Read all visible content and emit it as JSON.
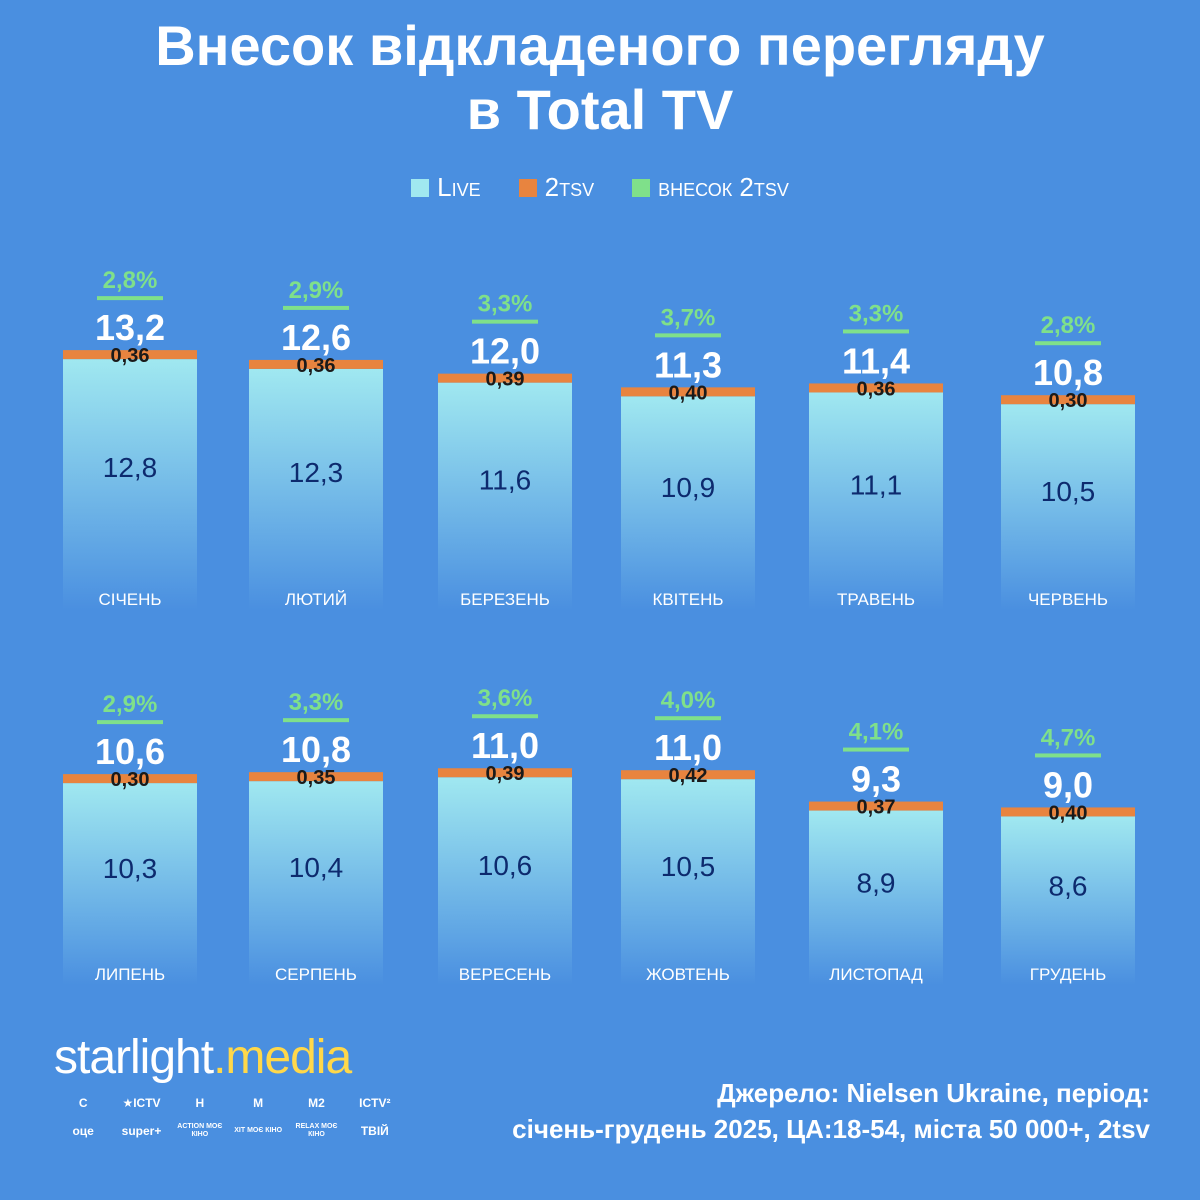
{
  "title": [
    "Внесок відкладеного перегляду",
    "в Total TV"
  ],
  "legend": {
    "live_label": "Live",
    "tsv_label": "2tsv",
    "share_label": "внесок 2tsv"
  },
  "colors": {
    "live_top": "#a0e8f0",
    "live_bottom": "#4a8fe0",
    "tsv": "#e8843f",
    "share": "#7fe08a",
    "total_text": "#ffffff",
    "live_text": "#0d2a6e",
    "tsv_text": "#1a1a1a"
  },
  "chart_data": {
    "type": "bar",
    "stacked": true,
    "categories": [
      "СІЧЕНЬ",
      "ЛЮТИЙ",
      "БЕРЕЗЕНЬ",
      "КВІТЕНЬ",
      "ТРАВЕНЬ",
      "ЧЕРВЕНЬ",
      "ЛИПЕНЬ",
      "СЕРПЕНЬ",
      "ВЕРЕСЕНЬ",
      "ЖОВТЕНЬ",
      "ЛИСТОПАД",
      "ГРУДЕНЬ"
    ],
    "series": [
      {
        "name": "Live",
        "values": [
          12.8,
          12.3,
          11.6,
          10.9,
          11.1,
          10.5,
          10.3,
          10.4,
          10.6,
          10.5,
          8.9,
          8.6
        ],
        "labels": [
          "12,8",
          "12,3",
          "11,6",
          "10,9",
          "11,1",
          "10,5",
          "10,3",
          "10,4",
          "10,6",
          "10,5",
          "8,9",
          "8,6"
        ]
      },
      {
        "name": "2tsv",
        "values": [
          0.36,
          0.36,
          0.39,
          0.4,
          0.36,
          0.3,
          0.3,
          0.35,
          0.39,
          0.42,
          0.37,
          0.4
        ],
        "labels": [
          "0,36",
          "0,36",
          "0,39",
          "0,40",
          "0,36",
          "0,30",
          "0,30",
          "0,35",
          "0,39",
          "0,42",
          "0,37",
          "0,40"
        ]
      }
    ],
    "totals": [
      "13,2",
      "12,6",
      "12,0",
      "11,3",
      "11,4",
      "10,8",
      "10,6",
      "10,8",
      "11,0",
      "11,0",
      "9,3",
      "9,0"
    ],
    "total_values": [
      13.2,
      12.6,
      12.0,
      11.3,
      11.4,
      10.8,
      10.6,
      10.8,
      11.0,
      11.0,
      9.3,
      9.0
    ],
    "share_labels": [
      "2,8%",
      "2,9%",
      "3,3%",
      "3,7%",
      "3,3%",
      "2,8%",
      "2,9%",
      "3,3%",
      "3,6%",
      "4,0%",
      "4,1%",
      "4,7%"
    ],
    "legend_position": "top",
    "grid": false
  },
  "brand": {
    "name_part1": "starlight",
    "dot": ".",
    "name_part2": "media",
    "channels": [
      "С",
      "★ICTV",
      "Н",
      "М",
      "М2",
      "ICTV²",
      "оце",
      "super+",
      "ACTION МОЄ КІНО",
      "ХІТ МОЄ КІНО",
      "RELAX МОЄ КІНО",
      "ТВІЙ"
    ]
  },
  "source": {
    "line1": "Джерело: Nielsen Ukraine, період:",
    "line2": "січень-грудень 2025, ЦА:18-54, міста 50 000+, 2tsv"
  }
}
